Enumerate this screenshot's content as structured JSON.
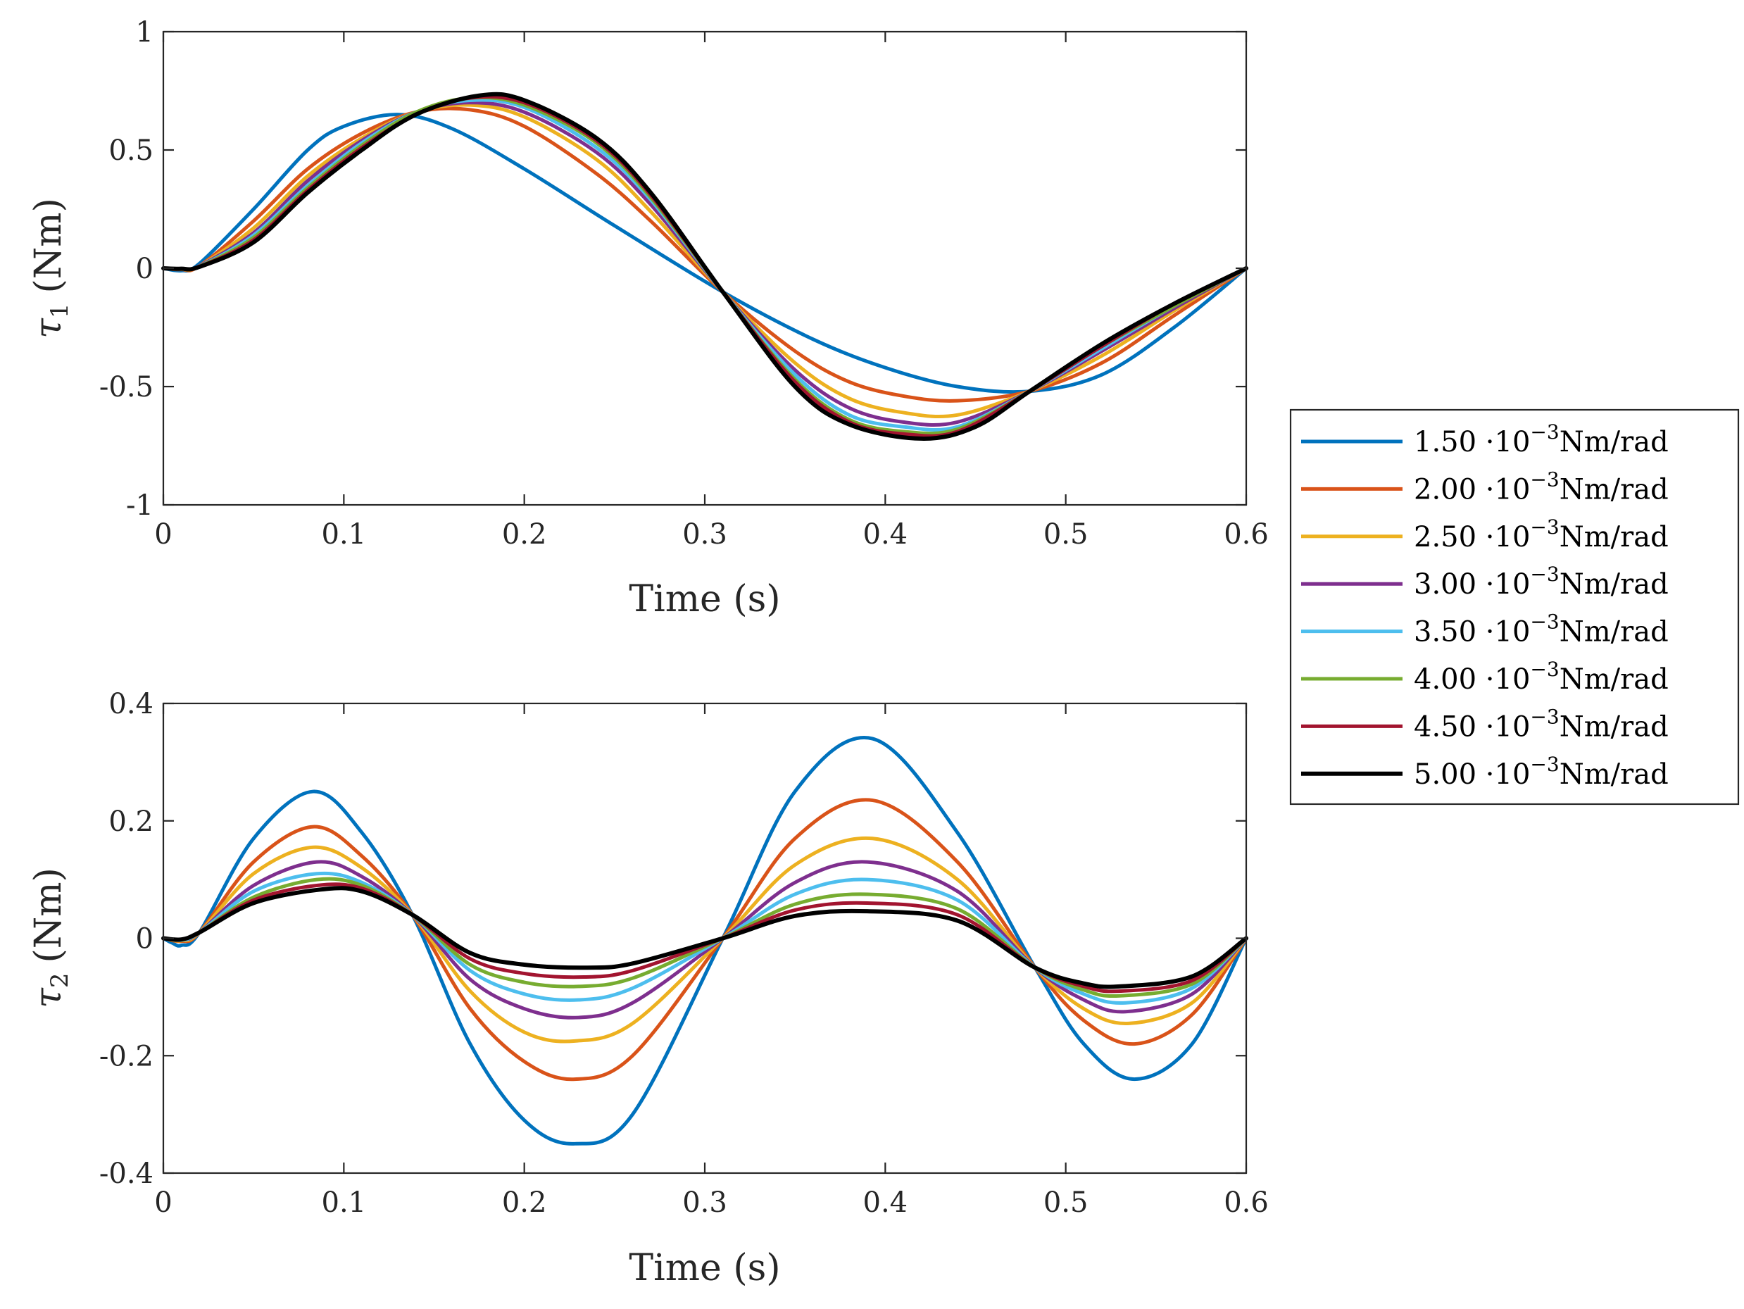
{
  "chart_data": [
    {
      "type": "line",
      "id": "top",
      "xlabel": "Time (s)",
      "ylabel_symbol": "τ",
      "ylabel_sub": "1",
      "ylabel_unit": "(Nm)",
      "xlim": [
        0,
        0.6
      ],
      "ylim": [
        -1,
        1
      ],
      "xticks": [
        0,
        0.1,
        0.2,
        0.3,
        0.4,
        0.5,
        0.6
      ],
      "xtick_labels": [
        "0",
        "0.1",
        "0.2",
        "0.3",
        "0.4",
        "0.5",
        "0.6"
      ],
      "yticks": [
        1,
        0.5,
        0,
        -0.5,
        -1
      ],
      "ytick_labels": [
        "1",
        "0.5",
        "0",
        "-0.5",
        "-1"
      ],
      "series": [
        {
          "name": "1.50",
          "x": [
            0,
            0.01,
            0.02,
            0.05,
            0.08,
            0.1,
            0.13,
            0.16,
            0.2,
            0.25,
            0.31,
            0.36,
            0.4,
            0.44,
            0.48,
            0.52,
            0.56,
            0.6
          ],
          "values": [
            0,
            -0.01,
            0.02,
            0.25,
            0.5,
            0.6,
            0.65,
            0.59,
            0.42,
            0.18,
            -0.1,
            -0.3,
            -0.42,
            -0.5,
            -0.52,
            -0.45,
            -0.25,
            0
          ]
        },
        {
          "name": "2.00",
          "x": [
            0,
            0.01,
            0.02,
            0.05,
            0.08,
            0.11,
            0.14,
            0.17,
            0.2,
            0.24,
            0.27,
            0.31,
            0.35,
            0.38,
            0.41,
            0.44,
            0.48,
            0.52,
            0.56,
            0.6
          ],
          "values": [
            0,
            -0.005,
            0.01,
            0.2,
            0.42,
            0.57,
            0.66,
            0.67,
            0.6,
            0.4,
            0.2,
            -0.1,
            -0.35,
            -0.48,
            -0.54,
            -0.56,
            -0.52,
            -0.4,
            -0.2,
            0
          ]
        },
        {
          "name": "2.50",
          "x": [
            0,
            0.01,
            0.02,
            0.05,
            0.08,
            0.11,
            0.14,
            0.17,
            0.2,
            0.24,
            0.27,
            0.31,
            0.35,
            0.38,
            0.41,
            0.44,
            0.48,
            0.52,
            0.56,
            0.6
          ],
          "values": [
            0,
            -0.004,
            0.01,
            0.17,
            0.39,
            0.55,
            0.66,
            0.69,
            0.64,
            0.46,
            0.24,
            -0.1,
            -0.4,
            -0.55,
            -0.61,
            -0.62,
            -0.52,
            -0.37,
            -0.18,
            0
          ]
        },
        {
          "name": "3.00",
          "x": [
            0,
            0.01,
            0.02,
            0.05,
            0.08,
            0.11,
            0.14,
            0.17,
            0.2,
            0.24,
            0.27,
            0.31,
            0.35,
            0.38,
            0.41,
            0.44,
            0.48,
            0.52,
            0.56,
            0.6
          ],
          "values": [
            0,
            -0.003,
            0.01,
            0.15,
            0.37,
            0.54,
            0.66,
            0.7,
            0.66,
            0.49,
            0.27,
            -0.1,
            -0.43,
            -0.59,
            -0.65,
            -0.65,
            -0.52,
            -0.35,
            -0.17,
            0
          ]
        },
        {
          "name": "3.50",
          "x": [
            0,
            0.01,
            0.02,
            0.05,
            0.08,
            0.11,
            0.14,
            0.17,
            0.2,
            0.24,
            0.27,
            0.31,
            0.35,
            0.38,
            0.41,
            0.44,
            0.48,
            0.52,
            0.56,
            0.6
          ],
          "values": [
            0,
            -0.003,
            0.008,
            0.14,
            0.35,
            0.53,
            0.66,
            0.71,
            0.68,
            0.51,
            0.29,
            -0.1,
            -0.45,
            -0.62,
            -0.67,
            -0.67,
            -0.52,
            -0.34,
            -0.16,
            0
          ]
        },
        {
          "name": "4.00",
          "x": [
            0,
            0.01,
            0.02,
            0.05,
            0.08,
            0.11,
            0.14,
            0.17,
            0.2,
            0.24,
            0.27,
            0.31,
            0.35,
            0.38,
            0.41,
            0.44,
            0.48,
            0.52,
            0.56,
            0.6
          ],
          "values": [
            0,
            -0.002,
            0.008,
            0.13,
            0.34,
            0.52,
            0.66,
            0.72,
            0.69,
            0.53,
            0.3,
            -0.1,
            -0.47,
            -0.64,
            -0.69,
            -0.68,
            -0.52,
            -0.33,
            -0.16,
            0
          ]
        },
        {
          "name": "4.50",
          "x": [
            0,
            0.01,
            0.02,
            0.05,
            0.08,
            0.11,
            0.14,
            0.17,
            0.2,
            0.24,
            0.27,
            0.31,
            0.35,
            0.38,
            0.41,
            0.44,
            0.48,
            0.52,
            0.56,
            0.6
          ],
          "values": [
            0,
            -0.002,
            0.007,
            0.12,
            0.33,
            0.51,
            0.65,
            0.72,
            0.7,
            0.54,
            0.31,
            -0.1,
            -0.48,
            -0.65,
            -0.7,
            -0.69,
            -0.52,
            -0.33,
            -0.15,
            0
          ]
        },
        {
          "name": "5.00",
          "x": [
            0,
            0.01,
            0.02,
            0.05,
            0.08,
            0.11,
            0.14,
            0.175,
            0.2,
            0.24,
            0.27,
            0.31,
            0.35,
            0.38,
            0.42,
            0.45,
            0.48,
            0.52,
            0.56,
            0.6
          ],
          "values": [
            0,
            -0.002,
            0.006,
            0.11,
            0.32,
            0.5,
            0.65,
            0.73,
            0.71,
            0.55,
            0.32,
            -0.1,
            -0.5,
            -0.66,
            -0.72,
            -0.67,
            -0.52,
            -0.32,
            -0.15,
            0
          ]
        }
      ]
    },
    {
      "type": "line",
      "id": "bottom",
      "xlabel": "Time (s)",
      "ylabel_symbol": "τ",
      "ylabel_sub": "2",
      "ylabel_unit": "(Nm)",
      "xlim": [
        0,
        0.6
      ],
      "ylim": [
        -0.4,
        0.4
      ],
      "xticks": [
        0,
        0.1,
        0.2,
        0.3,
        0.4,
        0.5,
        0.6
      ],
      "xtick_labels": [
        "0",
        "0.1",
        "0.2",
        "0.3",
        "0.4",
        "0.5",
        "0.6"
      ],
      "yticks": [
        0.4,
        0.2,
        0,
        -0.2,
        -0.4
      ],
      "ytick_labels": [
        "0.4",
        "0.2",
        "0",
        "-0.2",
        "-0.4"
      ],
      "series": [
        {
          "name": "1.50",
          "x": [
            0,
            0.005,
            0.01,
            0.02,
            0.05,
            0.083,
            0.11,
            0.138,
            0.17,
            0.2,
            0.228,
            0.26,
            0.31,
            0.35,
            0.393,
            0.44,
            0.483,
            0.51,
            0.538,
            0.57,
            0.6
          ],
          "values": [
            0,
            -0.008,
            -0.012,
            0.01,
            0.17,
            0.25,
            0.18,
            0.04,
            -0.18,
            -0.31,
            -0.35,
            -0.3,
            0,
            0.25,
            0.34,
            0.18,
            -0.05,
            -0.18,
            -0.24,
            -0.18,
            0
          ]
        },
        {
          "name": "2.00",
          "x": [
            0,
            0.01,
            0.02,
            0.05,
            0.083,
            0.11,
            0.138,
            0.17,
            0.2,
            0.228,
            0.26,
            0.31,
            0.35,
            0.393,
            0.44,
            0.483,
            0.51,
            0.538,
            0.57,
            0.6
          ],
          "values": [
            0,
            -0.005,
            0.01,
            0.13,
            0.19,
            0.14,
            0.04,
            -0.12,
            -0.21,
            -0.24,
            -0.2,
            0,
            0.17,
            0.235,
            0.13,
            -0.05,
            -0.14,
            -0.18,
            -0.13,
            0
          ]
        },
        {
          "name": "2.50",
          "x": [
            0,
            0.01,
            0.02,
            0.05,
            0.083,
            0.11,
            0.138,
            0.17,
            0.2,
            0.228,
            0.26,
            0.31,
            0.35,
            0.393,
            0.44,
            0.483,
            0.51,
            0.535,
            0.57,
            0.6
          ],
          "values": [
            0,
            -0.004,
            0.01,
            0.11,
            0.155,
            0.12,
            0.04,
            -0.09,
            -0.16,
            -0.175,
            -0.145,
            0,
            0.125,
            0.17,
            0.1,
            -0.05,
            -0.12,
            -0.145,
            -0.11,
            0
          ]
        },
        {
          "name": "3.00",
          "x": [
            0,
            0.01,
            0.02,
            0.05,
            0.085,
            0.11,
            0.138,
            0.17,
            0.2,
            0.23,
            0.26,
            0.31,
            0.35,
            0.39,
            0.44,
            0.483,
            0.51,
            0.533,
            0.57,
            0.6
          ],
          "values": [
            0,
            -0.003,
            0.01,
            0.09,
            0.13,
            0.105,
            0.04,
            -0.07,
            -0.12,
            -0.135,
            -0.11,
            0,
            0.095,
            0.13,
            0.08,
            -0.05,
            -0.105,
            -0.125,
            -0.095,
            0
          ]
        },
        {
          "name": "3.50",
          "x": [
            0,
            0.01,
            0.02,
            0.05,
            0.085,
            0.11,
            0.138,
            0.17,
            0.2,
            0.23,
            0.26,
            0.31,
            0.35,
            0.39,
            0.44,
            0.483,
            0.51,
            0.533,
            0.57,
            0.6
          ],
          "values": [
            0,
            -0.003,
            0.01,
            0.08,
            0.11,
            0.095,
            0.04,
            -0.055,
            -0.095,
            -0.105,
            -0.085,
            0,
            0.075,
            0.1,
            0.065,
            -0.05,
            -0.095,
            -0.11,
            -0.085,
            0
          ]
        },
        {
          "name": "4.00",
          "x": [
            0,
            0.01,
            0.02,
            0.05,
            0.085,
            0.11,
            0.138,
            0.17,
            0.2,
            0.23,
            0.26,
            0.31,
            0.35,
            0.39,
            0.44,
            0.483,
            0.51,
            0.53,
            0.57,
            0.6
          ],
          "values": [
            0,
            -0.002,
            0.01,
            0.07,
            0.1,
            0.09,
            0.04,
            -0.045,
            -0.075,
            -0.082,
            -0.068,
            0,
            0.058,
            0.075,
            0.05,
            -0.05,
            -0.088,
            -0.098,
            -0.078,
            0
          ]
        },
        {
          "name": "4.50",
          "x": [
            0,
            0.01,
            0.02,
            0.05,
            0.085,
            0.11,
            0.138,
            0.17,
            0.2,
            0.233,
            0.26,
            0.31,
            0.35,
            0.39,
            0.44,
            0.483,
            0.51,
            0.53,
            0.57,
            0.6
          ],
          "values": [
            0,
            -0.002,
            0.01,
            0.065,
            0.09,
            0.085,
            0.04,
            -0.035,
            -0.06,
            -0.066,
            -0.055,
            0,
            0.048,
            0.06,
            0.04,
            -0.05,
            -0.082,
            -0.09,
            -0.072,
            0
          ]
        },
        {
          "name": "5.00",
          "x": [
            0,
            0.01,
            0.02,
            0.05,
            0.087,
            0.11,
            0.138,
            0.17,
            0.2,
            0.235,
            0.26,
            0.31,
            0.35,
            0.39,
            0.44,
            0.483,
            0.51,
            0.53,
            0.57,
            0.6
          ],
          "values": [
            0,
            -0.002,
            0.01,
            0.06,
            0.083,
            0.08,
            0.04,
            -0.025,
            -0.045,
            -0.05,
            -0.043,
            0,
            0.038,
            0.046,
            0.03,
            -0.05,
            -0.077,
            -0.082,
            -0.065,
            0
          ]
        }
      ]
    }
  ],
  "legend": {
    "placement": "right",
    "prefix_symbol": "·10",
    "exponent": "−3",
    "unit": "Nm/rad",
    "entries": [
      {
        "value": "1.50",
        "color": "#0072BD"
      },
      {
        "value": "2.00",
        "color": "#D95319"
      },
      {
        "value": "2.50",
        "color": "#EDB120"
      },
      {
        "value": "3.00",
        "color": "#7E2F8E"
      },
      {
        "value": "3.50",
        "color": "#4DBEEE"
      },
      {
        "value": "4.00",
        "color": "#77AC30"
      },
      {
        "value": "4.50",
        "color": "#A2142F"
      },
      {
        "value": "5.00",
        "color": "#000000"
      }
    ]
  }
}
